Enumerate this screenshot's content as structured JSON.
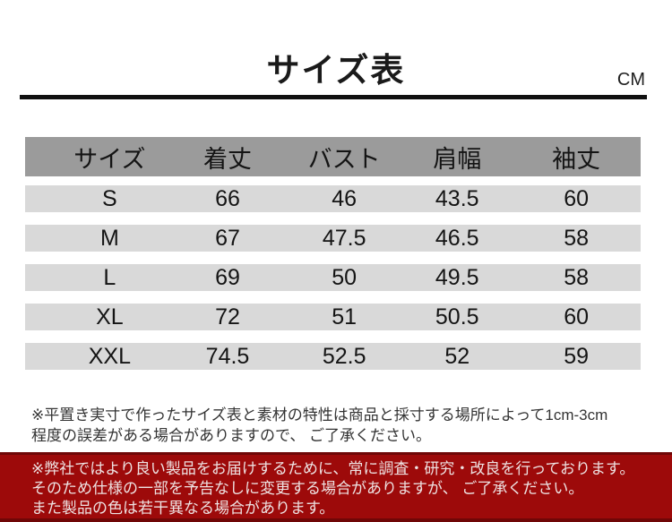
{
  "title": "サイズ表",
  "unit_label": "CM",
  "size_table": {
    "headers": [
      "サイズ",
      "着丈",
      "バスト",
      "肩幅",
      "袖丈"
    ],
    "rows": [
      [
        "S",
        "66",
        "46",
        "43.5",
        "60"
      ],
      [
        "M",
        "67",
        "47.5",
        "46.5",
        "58"
      ],
      [
        "L",
        "69",
        "50",
        "49.5",
        "58"
      ],
      [
        "XL",
        "72",
        "51",
        "50.5",
        "60"
      ],
      [
        "XXL",
        "74.5",
        "52.5",
        "52",
        "59"
      ]
    ]
  },
  "notes": {
    "tolerance": {
      "line1": "※平置き実寸で作ったサイズ表と素材の特性は商品と採寸する場所によって1cm-3cm",
      "line2": "程度の誤差がある場合がありますので、 ご了承ください。"
    },
    "banner": {
      "line1": "※弊社ではより良い製品をお届けするために、常に調査・研究・改良を行っております。",
      "line2": "そのため仕様の一部を予告なしに変更する場合がありますが、 ご了承ください。",
      "line3": "また製品の色は若干異なる場合があります。"
    }
  },
  "colors": {
    "header_gray": "#9b9b9b",
    "row_gray": "#d9d9d9",
    "banner_red": "#9d0a0a",
    "divider_black": "#111111"
  }
}
